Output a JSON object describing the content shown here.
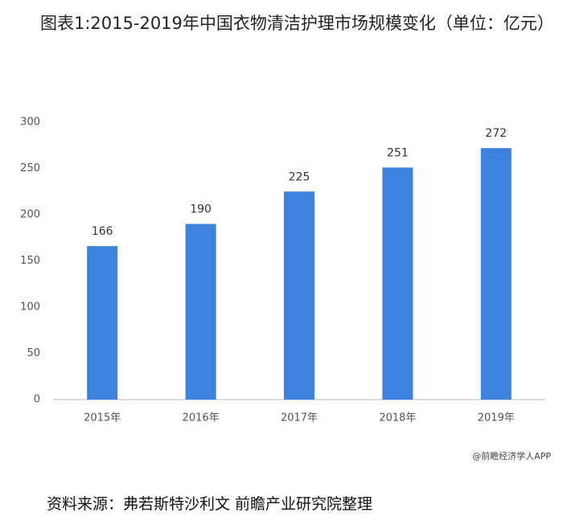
{
  "chart_data": {
    "type": "bar",
    "title": "图表1:2015-2019年中国衣物清洁护理市场规模变化（单位：亿元）",
    "categories": [
      "2015年",
      "2016年",
      "2017年",
      "2018年",
      "2019年"
    ],
    "values": [
      166,
      190,
      225,
      251,
      272
    ],
    "color": "#3d82dc",
    "ylim": [
      0,
      300
    ],
    "yticks": [
      0,
      50,
      100,
      150,
      200,
      250,
      300
    ],
    "grid": false,
    "credit": "@前瞻经济学人APP",
    "source": "资料来源：弗若斯特沙利文 前瞻产业研究院整理"
  }
}
